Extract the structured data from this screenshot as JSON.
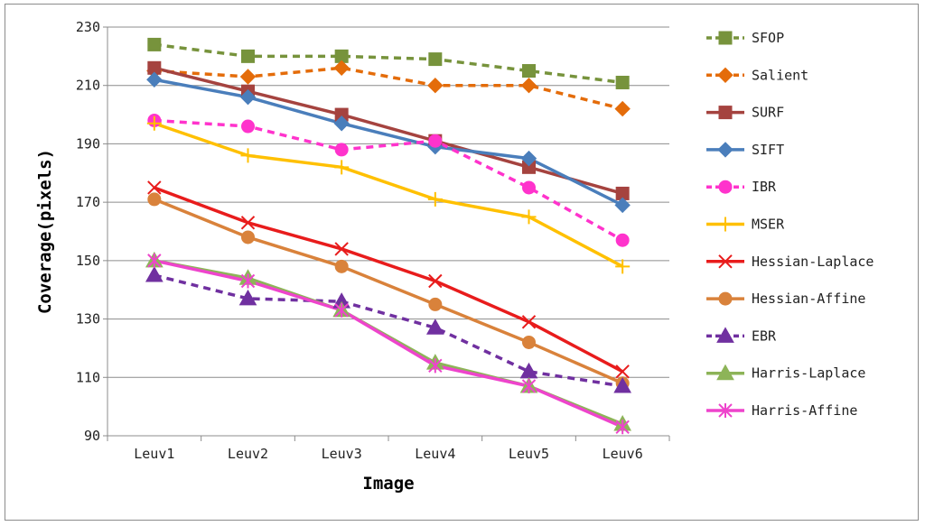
{
  "chart_data": {
    "type": "line",
    "title": "",
    "xlabel": "Image",
    "ylabel": "Coverage(pixels)",
    "categories": [
      "Leuv1",
      "Leuv2",
      "Leuv3",
      "Leuv4",
      "Leuv5",
      "Leuv6"
    ],
    "ylim": [
      90,
      230
    ],
    "yticks": [
      90,
      110,
      130,
      150,
      170,
      190,
      210,
      230
    ],
    "grid": "horizontal",
    "legend_position": "right",
    "series": [
      {
        "name": "SFOP",
        "color": "#77933c",
        "dash": true,
        "marker": "square",
        "values": [
          224,
          220,
          220,
          219,
          215,
          211
        ]
      },
      {
        "name": "Salient",
        "color": "#e46c0a",
        "dash": true,
        "marker": "diamond",
        "values": [
          215,
          213,
          216,
          210,
          210,
          202
        ]
      },
      {
        "name": "SURF",
        "color": "#a5433f",
        "dash": false,
        "marker": "square",
        "values": [
          216,
          208,
          200,
          191,
          182,
          173
        ]
      },
      {
        "name": "SIFT",
        "color": "#4a7ebb",
        "dash": false,
        "marker": "diamond",
        "values": [
          212,
          206,
          197,
          189,
          185,
          169
        ]
      },
      {
        "name": "IBR",
        "color": "#ff33cc",
        "dash": true,
        "marker": "circle",
        "values": [
          198,
          196,
          188,
          191,
          175,
          157
        ]
      },
      {
        "name": "MSER",
        "color": "#ffc000",
        "dash": false,
        "marker": "plus",
        "values": [
          197,
          186,
          182,
          171,
          165,
          148
        ]
      },
      {
        "name": "Hessian-Laplace",
        "color": "#e81c1c",
        "dash": false,
        "marker": "x",
        "values": [
          175,
          163,
          154,
          143,
          129,
          112
        ]
      },
      {
        "name": "Hessian-Affine",
        "color": "#d9823b",
        "dash": false,
        "marker": "circle",
        "values": [
          171,
          158,
          148,
          135,
          122,
          108
        ]
      },
      {
        "name": "EBR",
        "color": "#7030a0",
        "dash": true,
        "marker": "triangle",
        "values": [
          145,
          137,
          136,
          127,
          112,
          107
        ]
      },
      {
        "name": "Harris-Laplace",
        "color": "#8db458",
        "dash": false,
        "marker": "triangle",
        "values": [
          150,
          144,
          133,
          115,
          107,
          94
        ]
      },
      {
        "name": "Harris-Affine",
        "color": "#ee44cc",
        "dash": false,
        "marker": "star",
        "values": [
          150,
          143,
          133,
          114,
          107,
          93
        ]
      }
    ]
  }
}
